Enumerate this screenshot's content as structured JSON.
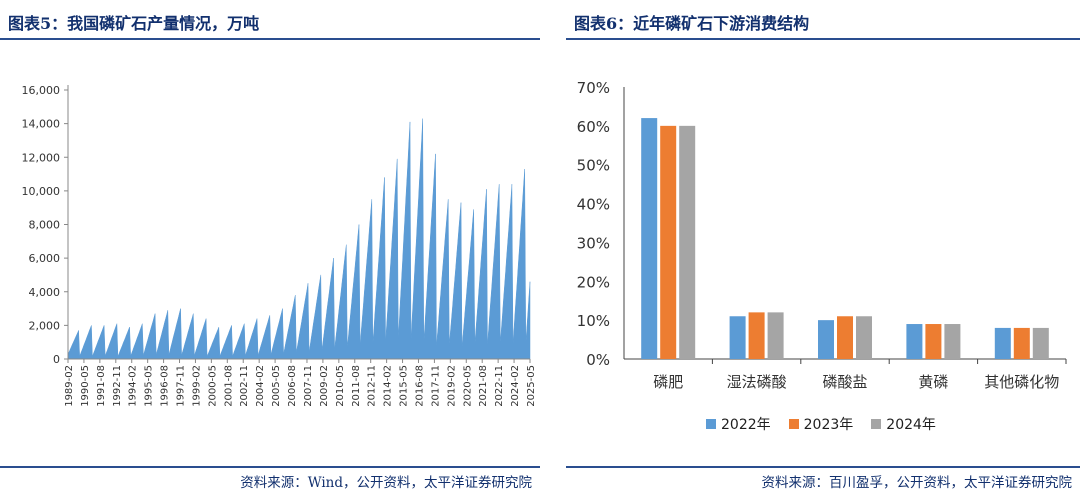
{
  "left": {
    "title": "图表5：我国磷矿石产量情况，万吨",
    "source": "资料来源：Wind，公开资料，太平洋证券研究院"
  },
  "right": {
    "title": "图表6：近年磷矿石下游消费结构",
    "source": "资料来源：百川盈孚，公开资料，太平洋证券研究院"
  },
  "chart_data": [
    {
      "type": "area",
      "title": "",
      "xlabel": "",
      "ylabel": "",
      "ylim": [
        0,
        16000
      ],
      "yticks": [
        0,
        2000,
        4000,
        6000,
        8000,
        10000,
        12000,
        14000,
        16000
      ],
      "ytick_labels": [
        "0",
        "2,000",
        "4,000",
        "6,000",
        "8,000",
        "10,000",
        "12,000",
        "14,000",
        "16,000"
      ],
      "xtick_labels": [
        "1989-02",
        "1990-05",
        "1991-08",
        "1992-11",
        "1994-02",
        "1995-05",
        "1996-08",
        "1997-11",
        "1999-02",
        "2000-05",
        "2001-08",
        "2002-11",
        "2004-02",
        "2005-05",
        "2006-08",
        "2007-11",
        "2009-02",
        "2010-05",
        "2011-08",
        "2012-11",
        "2014-02",
        "2015-05",
        "2016-08",
        "2017-11",
        "2019-02",
        "2020-05",
        "2021-08",
        "2022-11",
        "2024-02",
        "2025-05"
      ],
      "color": "#5b9bd5",
      "grid": false,
      "series_note": "cumulative monthly output, resets each year",
      "years": [
        1989,
        1990,
        1991,
        1992,
        1993,
        1994,
        1995,
        1996,
        1997,
        1998,
        1999,
        2000,
        2001,
        2002,
        2003,
        2004,
        2005,
        2006,
        2007,
        2008,
        2009,
        2010,
        2011,
        2012,
        2013,
        2014,
        2015,
        2016,
        2017,
        2018,
        2019,
        2020,
        2021,
        2022,
        2023,
        2024,
        2025
      ],
      "annual_peaks": [
        1700,
        2000,
        2000,
        2100,
        1900,
        2100,
        2700,
        2900,
        3000,
        2700,
        2400,
        1900,
        2000,
        2100,
        2400,
        2600,
        3000,
        3800,
        4500,
        5000,
        6000,
        6800,
        8000,
        9500,
        10800,
        11900,
        14100,
        14300,
        12200,
        9500,
        9300,
        8900,
        10100,
        10400,
        10400,
        11300,
        4600
      ]
    },
    {
      "type": "bar",
      "title": "",
      "xlabel": "",
      "ylabel": "",
      "ylim": [
        0,
        0.7
      ],
      "yticks": [
        0,
        0.1,
        0.2,
        0.3,
        0.4,
        0.5,
        0.6,
        0.7
      ],
      "ytick_labels": [
        "0%",
        "10%",
        "20%",
        "30%",
        "40%",
        "50%",
        "60%",
        "70%"
      ],
      "categories": [
        "磷肥",
        "湿法磷酸",
        "磷酸盐",
        "黄磷",
        "其他磷化物"
      ],
      "series": [
        {
          "name": "2022年",
          "color": "#5b9bd5",
          "values": [
            0.62,
            0.11,
            0.1,
            0.09,
            0.08
          ]
        },
        {
          "name": "2023年",
          "color": "#ed7d31",
          "values": [
            0.6,
            0.12,
            0.11,
            0.09,
            0.08
          ]
        },
        {
          "name": "2024年",
          "color": "#a5a5a5",
          "values": [
            0.6,
            0.12,
            0.11,
            0.09,
            0.08
          ]
        }
      ],
      "legend": "bottom",
      "grid": false
    }
  ]
}
